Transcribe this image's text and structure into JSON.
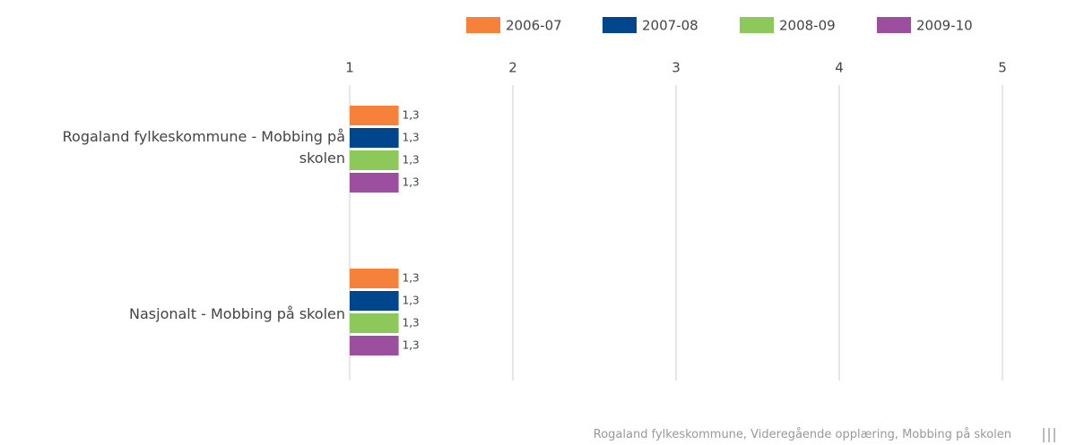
{
  "chart_data": {
    "type": "bar",
    "orientation": "horizontal",
    "categories": [
      "Rogaland fylkeskommune - Mobbing på skolen",
      "Nasjonalt - Mobbing på skolen"
    ],
    "series": [
      {
        "name": "2006-07",
        "color": "#f5813a",
        "values": [
          1.3,
          1.3
        ],
        "value_labels": [
          "1,3",
          "1,3"
        ]
      },
      {
        "name": "2007-08",
        "color": "#00468c",
        "values": [
          1.3,
          1.3
        ],
        "value_labels": [
          "1,3",
          "1,3"
        ]
      },
      {
        "name": "2008-09",
        "color": "#8cc85a",
        "values": [
          1.3,
          1.3
        ],
        "value_labels": [
          "1,3",
          "1,3"
        ]
      },
      {
        "name": "2009-10",
        "color": "#9b4f9e",
        "values": [
          1.3,
          1.3
        ],
        "value_labels": [
          "1,3",
          "1,3"
        ]
      }
    ],
    "xlim": [
      1,
      5
    ],
    "xticks": [
      1,
      2,
      3,
      4,
      5
    ],
    "grid": true,
    "legend": "top-right",
    "footer": "Rogaland fylkeskommune, Videregående opplæring, Mobbing på skolen"
  }
}
